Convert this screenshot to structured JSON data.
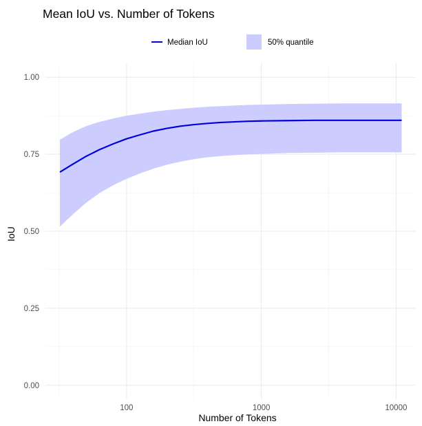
{
  "chart_data": {
    "type": "line",
    "title": "Mean IoU vs. Number of Tokens",
    "xlabel": "Number of Tokens",
    "ylabel": "IoU",
    "x_scale": "log10",
    "xlim": [
      25,
      14000
    ],
    "ylim": [
      -0.045,
      1.045
    ],
    "x_ticks": [
      100,
      1000,
      10000
    ],
    "x_tick_labels": [
      "100",
      "1000",
      "10000"
    ],
    "y_ticks": [
      0.0,
      0.25,
      0.5,
      0.75,
      1.0
    ],
    "y_tick_labels": [
      "0.00",
      "0.25",
      "0.50",
      "0.75",
      "1.00"
    ],
    "grid": true,
    "legend_position": "top",
    "series": [
      {
        "name": "Median IoU",
        "kind": "line",
        "color": "#0000dd",
        "x": [
          32,
          40,
          50,
          63,
          80,
          100,
          126,
          158,
          200,
          251,
          316,
          398,
          501,
          631,
          794,
          1000,
          1585,
          2512,
          3981,
          6310,
          11000
        ],
        "y": [
          0.692,
          0.718,
          0.743,
          0.765,
          0.784,
          0.8,
          0.813,
          0.825,
          0.834,
          0.841,
          0.846,
          0.85,
          0.853,
          0.855,
          0.857,
          0.858,
          0.859,
          0.86,
          0.86,
          0.86,
          0.86
        ]
      },
      {
        "name": "50% quantile",
        "kind": "ribbon",
        "color": "#ccccff",
        "x": [
          32,
          40,
          50,
          63,
          80,
          100,
          126,
          158,
          200,
          251,
          316,
          398,
          501,
          631,
          794,
          1000,
          1585,
          2512,
          3981,
          6310,
          11000
        ],
        "lower": [
          0.515,
          0.555,
          0.592,
          0.624,
          0.65,
          0.67,
          0.688,
          0.703,
          0.716,
          0.726,
          0.734,
          0.74,
          0.744,
          0.747,
          0.749,
          0.751,
          0.754,
          0.755,
          0.756,
          0.756,
          0.756
        ],
        "upper": [
          0.797,
          0.822,
          0.841,
          0.855,
          0.866,
          0.875,
          0.882,
          0.888,
          0.893,
          0.897,
          0.901,
          0.904,
          0.906,
          0.908,
          0.91,
          0.911,
          0.913,
          0.914,
          0.915,
          0.915,
          0.915
        ]
      }
    ]
  }
}
